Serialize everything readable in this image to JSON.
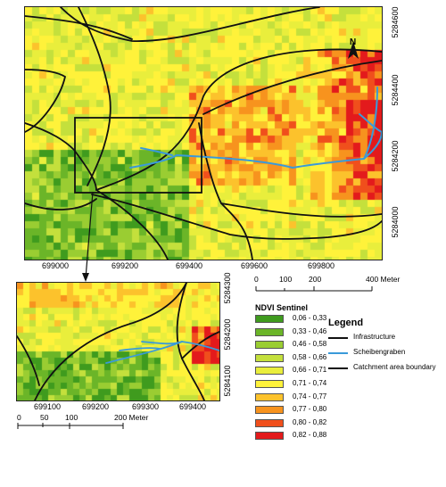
{
  "main_map": {
    "x_ticks": [
      "699000",
      "699200",
      "699400",
      "699600",
      "699800"
    ],
    "y_ticks": [
      "5284600",
      "5284400",
      "5284200",
      "5284000"
    ],
    "north_label": "N"
  },
  "inset_map": {
    "x_ticks": [
      "699100",
      "699200",
      "699300",
      "699400"
    ],
    "y_ticks": [
      "5284300",
      "5284200",
      "5284100"
    ]
  },
  "scalebar_main": {
    "labels": [
      "0",
      "100",
      "200",
      "400 Meter"
    ]
  },
  "scalebar_inset": {
    "labels": [
      "0",
      "50",
      "100",
      "200 Meter"
    ]
  },
  "ndvi_legend": {
    "title": "NDVI Sentinel",
    "classes": [
      {
        "label": "0,06 - 0,33",
        "color": "#3f9b1e"
      },
      {
        "label": "0,33 - 0,46",
        "color": "#6bb528"
      },
      {
        "label": "0,46 - 0,58",
        "color": "#9acd32"
      },
      {
        "label": "0,58 - 0,66",
        "color": "#c4e03c"
      },
      {
        "label": "0,66 - 0,71",
        "color": "#e9ee3c"
      },
      {
        "label": "0,71 - 0,74",
        "color": "#fff23a"
      },
      {
        "label": "0,74 - 0,77",
        "color": "#fcc22c"
      },
      {
        "label": "0,77 - 0,80",
        "color": "#f7931e"
      },
      {
        "label": "0,80 - 0,82",
        "color": "#f04f1c"
      },
      {
        "label": "0,82 - 0,88",
        "color": "#e31a1c"
      }
    ]
  },
  "legend": {
    "title": "Legend",
    "items": [
      {
        "label": "Infrastructure",
        "color": "#111111"
      },
      {
        "label": "Scheibengraben",
        "color": "#3a9ad9"
      },
      {
        "label": "Catchment area boundary",
        "color": "#111111"
      }
    ]
  }
}
